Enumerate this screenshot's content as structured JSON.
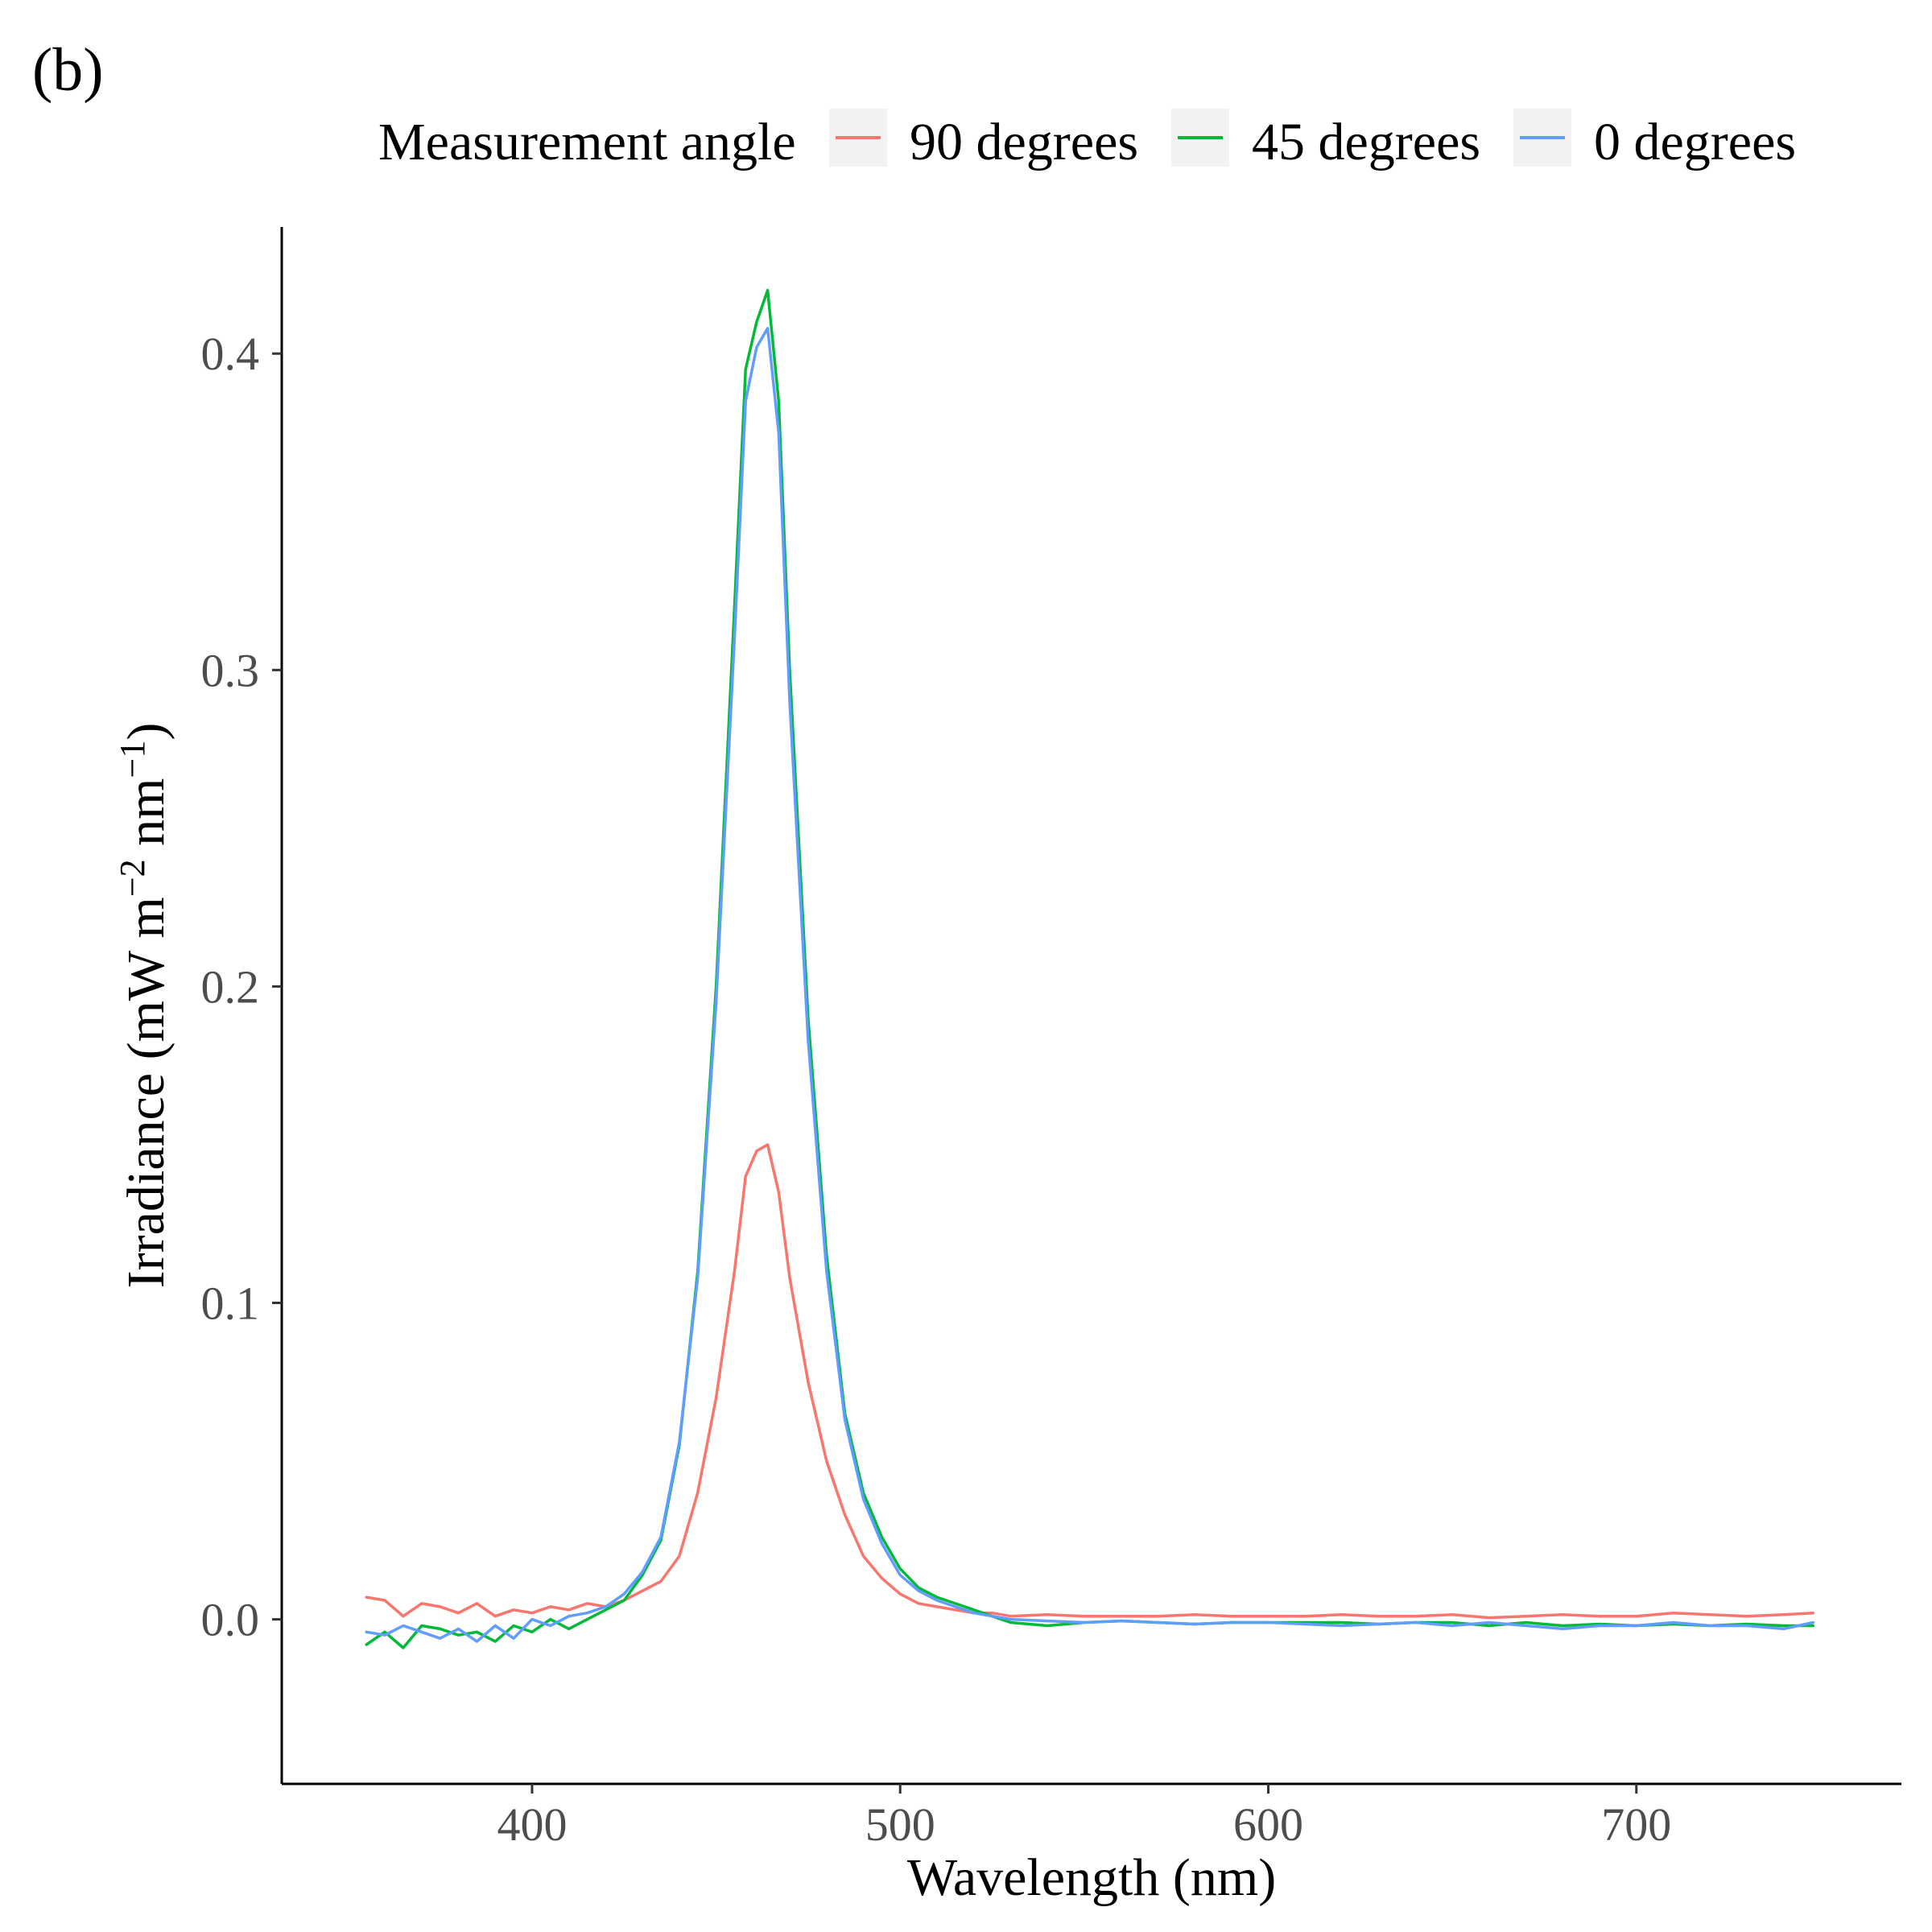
{
  "panel_label": "(b)",
  "legend": {
    "title": "Measurement angle",
    "entries": [
      {
        "label": "90 degrees",
        "color": "#F8766D"
      },
      {
        "label": "45 degrees",
        "color": "#00BA38"
      },
      {
        "label": "0 degrees",
        "color": "#619CFF"
      }
    ]
  },
  "axes": {
    "xlabel": "Wavelength (nm)",
    "ylabel_main": "Irradiance (mW m",
    "ylabel_sup1": "−2",
    "ylabel_mid": " nm",
    "ylabel_sup2": "−1",
    "ylabel_end": ")",
    "xticks": [
      "400",
      "500",
      "600",
      "700"
    ],
    "yticks": [
      "0.0",
      "0.1",
      "0.2",
      "0.3",
      "0.4"
    ]
  },
  "chart_data": {
    "type": "line",
    "title": "",
    "xlabel": "Wavelength (nm)",
    "ylabel": "Irradiance (mW m−2 nm−1)",
    "xlim": [
      332,
      772
    ],
    "ylim": [
      -0.052,
      0.44
    ],
    "xticks": [
      400,
      500,
      600,
      700
    ],
    "yticks": [
      0.0,
      0.1,
      0.2,
      0.3,
      0.4
    ],
    "grid": false,
    "legend_position": "top",
    "x": [
      355,
      360,
      365,
      370,
      375,
      380,
      385,
      390,
      395,
      400,
      405,
      410,
      415,
      420,
      425,
      430,
      435,
      440,
      445,
      450,
      455,
      458,
      461,
      464,
      467,
      470,
      475,
      480,
      485,
      490,
      495,
      500,
      505,
      510,
      515,
      520,
      525,
      530,
      540,
      550,
      560,
      570,
      580,
      590,
      600,
      610,
      620,
      630,
      640,
      650,
      660,
      670,
      680,
      690,
      700,
      710,
      720,
      730,
      740,
      748
    ],
    "series": [
      {
        "name": "90 degrees",
        "color": "#F8766D",
        "values": [
          0.007,
          0.006,
          0.001,
          0.005,
          0.004,
          0.002,
          0.005,
          0.001,
          0.003,
          0.002,
          0.004,
          0.003,
          0.005,
          0.004,
          0.006,
          0.009,
          0.012,
          0.02,
          0.04,
          0.07,
          0.11,
          0.14,
          0.148,
          0.15,
          0.135,
          0.108,
          0.075,
          0.05,
          0.033,
          0.02,
          0.013,
          0.008,
          0.005,
          0.004,
          0.003,
          0.002,
          0.002,
          0.001,
          0.0015,
          0.001,
          0.001,
          0.001,
          0.0015,
          0.001,
          0.001,
          0.001,
          0.0015,
          0.001,
          0.001,
          0.0015,
          0.0005,
          0.001,
          0.0015,
          0.001,
          0.001,
          0.002,
          0.0015,
          0.001,
          0.0015,
          0.002
        ]
      },
      {
        "name": "45 degrees",
        "color": "#00BA38",
        "values": [
          -0.008,
          -0.004,
          -0.009,
          -0.002,
          -0.003,
          -0.005,
          -0.004,
          -0.007,
          -0.002,
          -0.004,
          0.0,
          -0.003,
          0.0,
          0.003,
          0.006,
          0.014,
          0.025,
          0.055,
          0.11,
          0.2,
          0.32,
          0.395,
          0.41,
          0.42,
          0.385,
          0.3,
          0.19,
          0.115,
          0.065,
          0.04,
          0.026,
          0.016,
          0.01,
          0.007,
          0.005,
          0.003,
          0.001,
          -0.001,
          -0.002,
          -0.001,
          -0.0005,
          -0.001,
          -0.0015,
          -0.001,
          -0.001,
          -0.001,
          -0.001,
          -0.0015,
          -0.001,
          -0.001,
          -0.002,
          -0.001,
          -0.002,
          -0.0015,
          -0.002,
          -0.0015,
          -0.002,
          -0.0015,
          -0.002,
          -0.002
        ]
      },
      {
        "name": "0 degrees",
        "color": "#619CFF",
        "values": [
          -0.004,
          -0.005,
          -0.002,
          -0.004,
          -0.006,
          -0.003,
          -0.007,
          -0.002,
          -0.006,
          0.0,
          -0.002,
          0.001,
          0.002,
          0.004,
          0.008,
          0.015,
          0.026,
          0.056,
          0.108,
          0.195,
          0.31,
          0.385,
          0.402,
          0.408,
          0.375,
          0.29,
          0.183,
          0.11,
          0.063,
          0.038,
          0.024,
          0.014,
          0.009,
          0.006,
          0.004,
          0.002,
          0.001,
          0.0,
          -0.0005,
          -0.001,
          -0.0005,
          -0.001,
          -0.0015,
          -0.001,
          -0.001,
          -0.0015,
          -0.002,
          -0.0015,
          -0.001,
          -0.002,
          -0.001,
          -0.002,
          -0.003,
          -0.002,
          -0.002,
          -0.001,
          -0.002,
          -0.002,
          -0.003,
          -0.001
        ]
      }
    ]
  }
}
